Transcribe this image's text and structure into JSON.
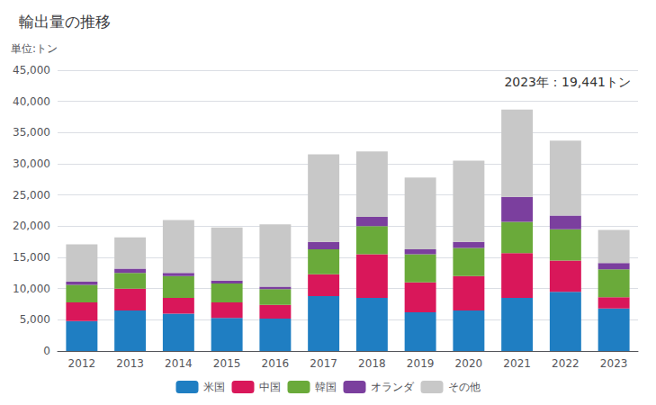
{
  "chart_data": {
    "type": "bar",
    "title": "輸出量の推移",
    "ylabel": "単位:トン",
    "annotation": "2023年：19,441トン",
    "categories": [
      "2012",
      "2013",
      "2014",
      "2015",
      "2016",
      "2017",
      "2018",
      "2019",
      "2020",
      "2021",
      "2022",
      "2023"
    ],
    "series": [
      {
        "name": "米国",
        "color": "#1f7ec2",
        "values": [
          4800,
          6500,
          6000,
          5300,
          5200,
          8800,
          8500,
          6200,
          6500,
          8500,
          9500,
          6800
        ]
      },
      {
        "name": "中国",
        "color": "#d9175a",
        "values": [
          3000,
          3500,
          2500,
          2500,
          2200,
          3500,
          7000,
          4800,
          5500,
          7200,
          5000,
          1800
        ]
      },
      {
        "name": "韓国",
        "color": "#6aaa3a",
        "values": [
          2800,
          2500,
          3500,
          3000,
          2500,
          4000,
          4500,
          4500,
          4500,
          5000,
          5000,
          4500
        ]
      },
      {
        "name": "オランダ",
        "color": "#7b3f9e",
        "values": [
          500,
          700,
          500,
          500,
          400,
          1200,
          1500,
          800,
          1000,
          4000,
          2200,
          1000
        ]
      },
      {
        "name": "その他",
        "color": "#c8c8c8",
        "values": [
          6000,
          5000,
          8500,
          8500,
          10000,
          14000,
          10500,
          11500,
          13000,
          14000,
          12000,
          5300
        ]
      }
    ],
    "stacked": true,
    "ylim": [
      0,
      45000
    ],
    "yticks": [
      0,
      {
        "value": 5000,
        "label": "5,000"
      },
      {
        "value": 10000,
        "label": "10,000"
      },
      {
        "value": 15000,
        "label": "15,000"
      },
      {
        "value": 20000,
        "label": "20,000"
      },
      {
        "value": 25000,
        "label": "25,000"
      },
      {
        "value": 30000,
        "label": "30,000"
      },
      {
        "value": 35000,
        "label": "35,000"
      },
      {
        "value": 40000,
        "label": "40,000"
      },
      {
        "value": 45000,
        "label": "45,000"
      }
    ],
    "grid": true,
    "legend": "bottom"
  }
}
